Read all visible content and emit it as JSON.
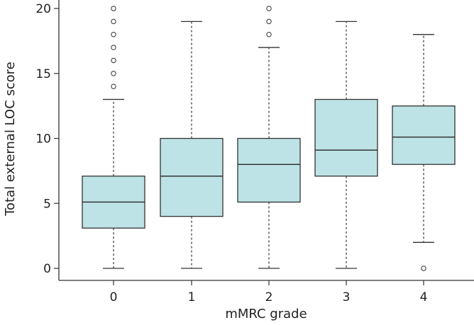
{
  "chart_data": {
    "type": "boxplot",
    "title": "",
    "xlabel": "mMRC grade",
    "ylabel": "Total external LOC score",
    "categories": [
      "0",
      "1",
      "2",
      "3",
      "4"
    ],
    "ylim": [
      0,
      20
    ],
    "yticks": [
      "0",
      "5",
      "10",
      "15",
      "20"
    ],
    "grid": false,
    "box_color": "#bde3e6",
    "line_color": "#333333",
    "boxes": [
      {
        "category": "0",
        "whisker_low": 0,
        "q1": 3.1,
        "median": 5.1,
        "q3": 7.1,
        "whisker_high": 13,
        "outliers": [
          14,
          15,
          16,
          17,
          18,
          19,
          20
        ]
      },
      {
        "category": "1",
        "whisker_low": 0,
        "q1": 4,
        "median": 7.1,
        "q3": 10,
        "whisker_high": 19,
        "outliers": []
      },
      {
        "category": "2",
        "whisker_low": 0,
        "q1": 5.1,
        "median": 8,
        "q3": 10,
        "whisker_high": 17,
        "outliers": [
          18,
          19,
          20
        ]
      },
      {
        "category": "3",
        "whisker_low": 0,
        "q1": 7.1,
        "median": 9.1,
        "q3": 13,
        "whisker_high": 19,
        "outliers": []
      },
      {
        "category": "4",
        "whisker_low": 2,
        "q1": 8,
        "median": 10.1,
        "q3": 12.5,
        "whisker_high": 18,
        "outliers": [
          0
        ]
      }
    ]
  }
}
